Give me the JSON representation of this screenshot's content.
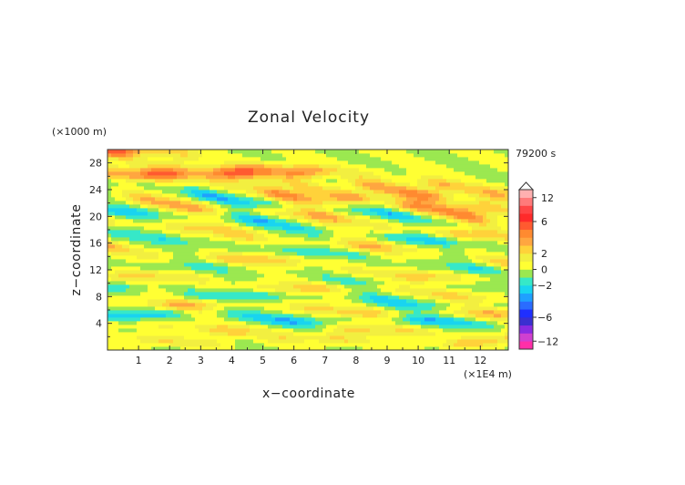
{
  "chart_data": {
    "type": "heatmap",
    "title": "Zonal Velocity",
    "time_label": "79200 s",
    "xlabel": "x−coordinate",
    "ylabel": "z−coordinate",
    "x_unit": "(×1E4 m)",
    "y_unit": "(×1000 m)",
    "xlim": [
      0,
      12.9
    ],
    "ylim": [
      0,
      30
    ],
    "x_ticks": [
      "1",
      "2",
      "3",
      "4",
      "5",
      "6",
      "7",
      "8",
      "9",
      "10",
      "11",
      "12"
    ],
    "y_ticks": [
      "4",
      "8",
      "12",
      "16",
      "20",
      "24",
      "28"
    ],
    "colorbar": {
      "tick_labels": [
        "12",
        "6",
        "2",
        "0",
        "−2",
        "−6",
        "−12"
      ],
      "levels": [
        -14,
        -12,
        -10,
        -8,
        -6,
        -5,
        -4,
        -3,
        -2,
        -1,
        0,
        1,
        2,
        3,
        4,
        5,
        6,
        8,
        10,
        12,
        14
      ],
      "colors": [
        "#ff2fa8",
        "#d040d0",
        "#8a2be2",
        "#3a2fd0",
        "#1f2fff",
        "#2a6cff",
        "#1fa0ff",
        "#19d4f0",
        "#36e8c8",
        "#9be850",
        "#ffff33",
        "#f2ef40",
        "#ffd23a",
        "#ffa640",
        "#ff8a30",
        "#ff5a30",
        "#ff2a2a",
        "#ff4545",
        "#ff7a7a",
        "#ffb0b0"
      ],
      "extend": "max"
    },
    "field_bands": [
      {
        "y": 27.3,
        "s": -0.5,
        "amp": 3.2,
        "w": 0.9
      },
      {
        "y": 26.0,
        "s": -0.55,
        "amp": 4.2,
        "w": 1.0
      },
      {
        "y": 24.6,
        "s": -0.6,
        "amp": 3.0,
        "w": 0.9
      },
      {
        "y": 23.3,
        "s": -0.6,
        "amp": 4.6,
        "w": 1.0
      },
      {
        "y": 21.8,
        "s": -0.55,
        "amp": -3.2,
        "w": 0.9
      },
      {
        "y": 20.2,
        "s": -0.5,
        "amp": 3.6,
        "w": 1.0
      },
      {
        "y": 18.4,
        "s": -0.5,
        "amp": -2.8,
        "w": 0.9
      },
      {
        "y": 16.5,
        "s": -0.45,
        "amp": 3.0,
        "w": 1.0
      },
      {
        "y": 14.8,
        "s": -0.4,
        "amp": -2.0,
        "w": 0.9
      },
      {
        "y": 12.9,
        "s": -0.4,
        "amp": 3.0,
        "w": 0.9
      },
      {
        "y": 11.3,
        "s": -0.3,
        "amp": -1.4,
        "w": 0.9
      },
      {
        "y": 9.6,
        "s": -0.25,
        "amp": 2.6,
        "w": 0.9
      },
      {
        "y": 8.0,
        "s": -0.2,
        "amp": -2.4,
        "w": 0.9
      },
      {
        "y": 6.4,
        "s": -0.2,
        "amp": 3.0,
        "w": 0.9
      },
      {
        "y": 4.7,
        "s": -0.15,
        "amp": -3.0,
        "w": 0.9
      },
      {
        "y": 3.0,
        "s": -0.1,
        "amp": 2.6,
        "w": 0.9
      },
      {
        "y": 1.4,
        "s": -0.05,
        "amp": 2.2,
        "w": 0.7
      }
    ]
  }
}
